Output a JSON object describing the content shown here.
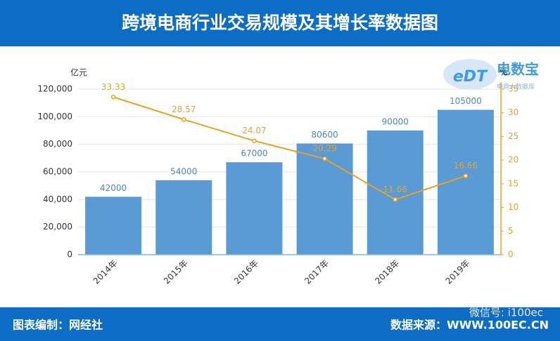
{
  "chart_data": {
    "type": "bar",
    "title": "跨境电商行业交易规模及其增长率数据图",
    "y_label": "亿元",
    "y2_label": "%",
    "categories": [
      "2014年",
      "2015年",
      "2016年",
      "2017年",
      "2018年",
      "2019年"
    ],
    "series": [
      {
        "type": "bar",
        "color": "#5b9bd5",
        "values": [
          42000,
          54000,
          67000,
          80600,
          90000,
          105000
        ]
      },
      {
        "type": "line",
        "axis": "y2",
        "color": "#e9a21f",
        "values": [
          33.33,
          28.57,
          24.07,
          20.29,
          11.66,
          16.66
        ]
      }
    ],
    "ylim": [
      0,
      120000
    ],
    "yticks": [
      0,
      {
        "value": 20000,
        "label": "20,000"
      },
      {
        "value": 40000,
        "label": "40,000"
      },
      {
        "value": 60000,
        "label": "60,000"
      },
      {
        "value": 80000,
        "label": "80,000"
      },
      {
        "value": 100000,
        "label": "100,000"
      },
      {
        "value": 120000,
        "label": "120,000"
      }
    ],
    "y2lim": [
      0,
      35
    ],
    "y2ticks": [
      0,
      5,
      10,
      15,
      20,
      25,
      30,
      35
    ],
    "grid": true,
    "logo_mark": "eDT",
    "logo": "电数宝",
    "logo_subtitle": "电商大数据库",
    "credit": "图表编制：网经社",
    "source": "数据来源：WWW.100EC.CN",
    "watermark": "微信号: i100ec"
  }
}
